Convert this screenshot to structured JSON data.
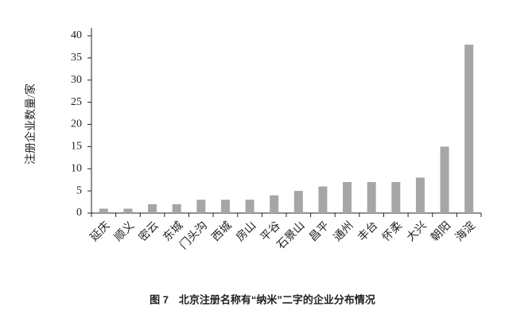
{
  "chart_data": {
    "type": "bar",
    "title": "图 7　北京注册名称有“纳米”二字的企业分布情况",
    "y_label": "注册企业数量/家",
    "categories": [
      "延庆",
      "顺义",
      "密云",
      "东城",
      "门头沟",
      "西城",
      "房山",
      "平谷",
      "石景山",
      "昌平",
      "通州",
      "丰台",
      "怀柔",
      "大兴",
      "朝阳",
      "海淀"
    ],
    "values": [
      1,
      1,
      2,
      2,
      3,
      3,
      3,
      4,
      5,
      6,
      7,
      7,
      7,
      8,
      15,
      38
    ],
    "color": "#a6a6a6",
    "ylim": [
      0,
      40
    ],
    "yticks": [
      0,
      5,
      10,
      15,
      20,
      25,
      30,
      35,
      40
    ],
    "grid": false
  }
}
